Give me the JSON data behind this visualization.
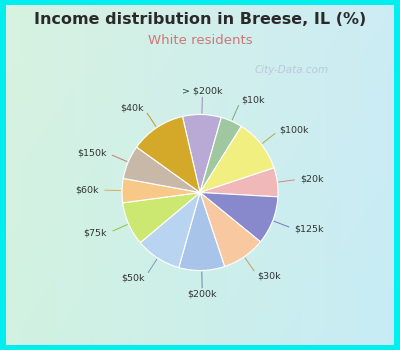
{
  "title": "Income distribution in Breese, IL (%)",
  "subtitle": "White residents",
  "title_color": "#2a2a2a",
  "subtitle_color": "#cc7777",
  "background_color": "#00eeee",
  "labels": [
    "> $200k",
    "$10k",
    "$100k",
    "$20k",
    "$125k",
    "$30k",
    "$200k",
    "$50k",
    "$75k",
    "$60k",
    "$150k",
    "$40k"
  ],
  "values": [
    8.0,
    4.5,
    11.0,
    6.0,
    10.0,
    9.0,
    9.5,
    9.5,
    9.0,
    5.0,
    7.0,
    11.5
  ],
  "colors": [
    "#b8aad4",
    "#a0c8a0",
    "#f0ef80",
    "#f0b8b8",
    "#8888cc",
    "#f8c8a0",
    "#a8c4e8",
    "#b8d4f0",
    "#cce870",
    "#f8c888",
    "#c8b8a8",
    "#d4a828"
  ],
  "start_angle": 103,
  "watermark": "City-Data.com",
  "figsize": [
    4.0,
    3.5
  ],
  "dpi": 100
}
